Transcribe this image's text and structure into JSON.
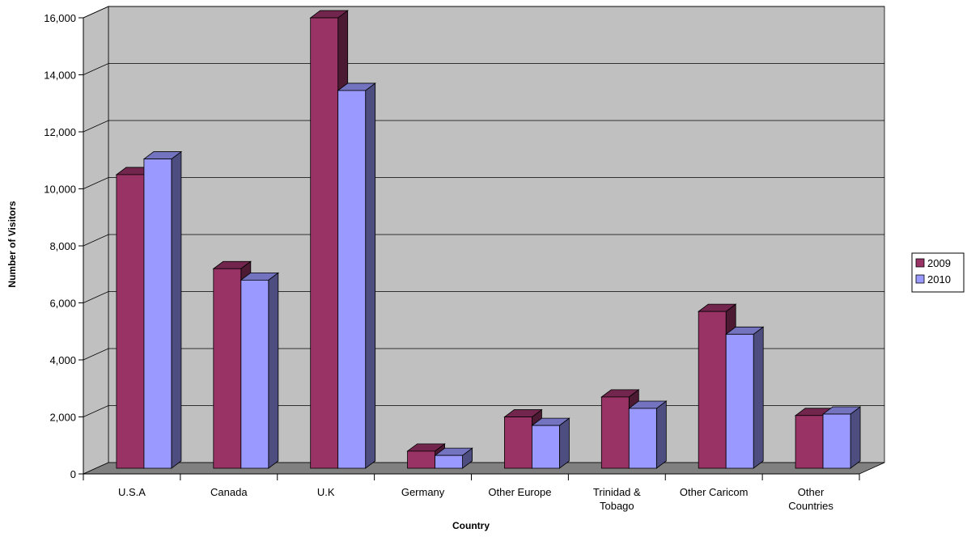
{
  "chart_data": {
    "type": "bar",
    "title": "",
    "xlabel": "Country",
    "ylabel": "Number of Visitors",
    "ylim": [
      0,
      16000
    ],
    "ytick_step": 2000,
    "yticks": [
      "0",
      "2,000",
      "4,000",
      "6,000",
      "8,000",
      "10,000",
      "12,000",
      "14,000",
      "16,000"
    ],
    "categories": [
      [
        "U.S.A"
      ],
      [
        "Canada"
      ],
      [
        "U.K"
      ],
      [
        "Germany"
      ],
      [
        "Other Europe"
      ],
      [
        "Trinidad &",
        "Tobago"
      ],
      [
        "Other Caricom"
      ],
      [
        "Other",
        "Countries"
      ]
    ],
    "series": [
      {
        "name": "2009",
        "color": "#993366",
        "values": [
          10300,
          7000,
          15800,
          600,
          1800,
          2500,
          5500,
          1850
        ]
      },
      {
        "name": "2010",
        "color": "#9999ff",
        "values": [
          10850,
          6600,
          13250,
          450,
          1500,
          2100,
          4700,
          1900
        ]
      }
    ],
    "grid": true,
    "legend": "right",
    "three_d": true,
    "wall_color": "#c0c0c0",
    "floor_color": "#808080"
  }
}
